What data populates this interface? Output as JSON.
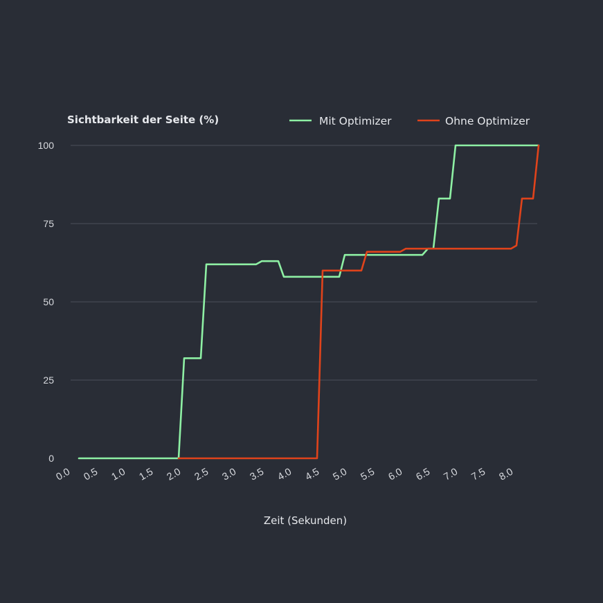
{
  "chart_data": {
    "type": "line",
    "ylabel": "Sichtbarkeit der Seite (%)",
    "xlabel": "Zeit (Sekunden)",
    "xlim": [
      0,
      8.5
    ],
    "ylim": [
      0,
      100
    ],
    "yticks": [
      0,
      25,
      50,
      75,
      100
    ],
    "xtick_labels": [
      "0.0",
      "0.5",
      "1.0",
      "1.5",
      "2.0",
      "2.5",
      "3.0",
      "3.5",
      "4.0",
      "4.5",
      "5.0",
      "5.5",
      "6.0",
      "6.5",
      "7.0",
      "7.5",
      "8.0"
    ],
    "grid": "horizontal",
    "legend_position": "top-right",
    "series": [
      {
        "name": "Mit Optimizer",
        "color": "#8ef0a4",
        "points": [
          [
            0.15,
            0
          ],
          [
            1.95,
            0
          ],
          [
            2.05,
            32
          ],
          [
            2.35,
            32
          ],
          [
            2.45,
            62
          ],
          [
            3.35,
            62
          ],
          [
            3.45,
            63
          ],
          [
            3.75,
            63
          ],
          [
            3.85,
            58
          ],
          [
            4.85,
            58
          ],
          [
            4.95,
            65
          ],
          [
            6.35,
            65
          ],
          [
            6.45,
            67
          ],
          [
            6.55,
            67
          ],
          [
            6.65,
            83
          ],
          [
            6.85,
            83
          ],
          [
            6.95,
            100
          ],
          [
            8.45,
            100
          ]
        ]
      },
      {
        "name": "Ohne Optimizer",
        "color": "#e0431b",
        "points": [
          [
            1.95,
            0
          ],
          [
            4.45,
            0
          ],
          [
            4.55,
            60
          ],
          [
            5.25,
            60
          ],
          [
            5.35,
            66
          ],
          [
            5.95,
            66
          ],
          [
            6.05,
            67
          ],
          [
            7.95,
            67
          ],
          [
            8.05,
            68
          ],
          [
            8.15,
            83
          ],
          [
            8.35,
            83
          ],
          [
            8.45,
            100
          ]
        ]
      }
    ]
  }
}
